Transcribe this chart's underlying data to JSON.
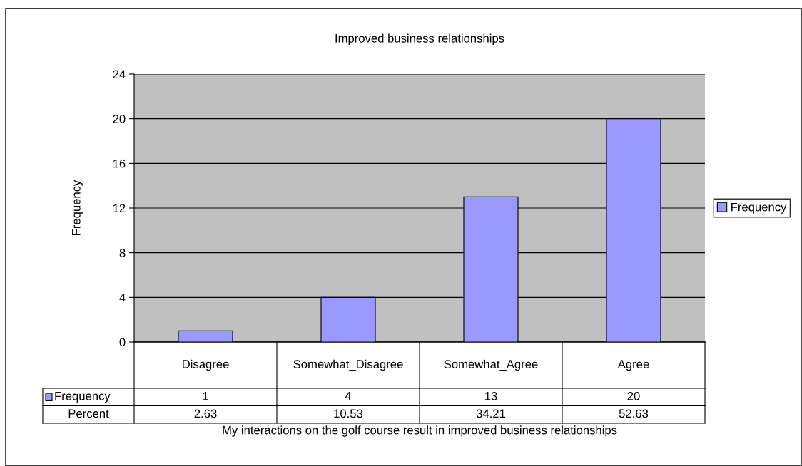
{
  "chart_data": {
    "type": "bar",
    "title": "Improved business relationships",
    "xlabel": "My interactions on the golf course result in improved business relationships",
    "ylabel": "Frequency",
    "categories": [
      "Disagree",
      "Somewhat_Disagree",
      "Somewhat_Agree",
      "Agree"
    ],
    "series": [
      {
        "name": "Frequency",
        "color": "#9999ff",
        "values": [
          1,
          4,
          13,
          20
        ]
      }
    ],
    "ylim": [
      0,
      24
    ],
    "yticks": [
      0,
      4,
      8,
      12,
      16,
      20,
      24
    ],
    "grid": "y",
    "legend": "right",
    "data_labels": true,
    "annotations": [
      "Percent",
      "2.63",
      "10.53",
      "34.21",
      "52.63"
    ]
  }
}
